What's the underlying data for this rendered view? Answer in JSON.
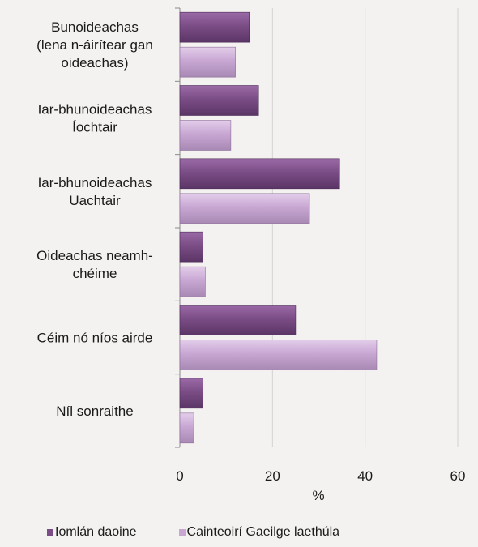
{
  "chart_data": {
    "type": "bar",
    "orientation": "horizontal",
    "categories": [
      [
        "Bunoideachas",
        "(lena n-áirítear gan",
        "oideachas)"
      ],
      [
        "Iar-bhunoideachas",
        "Íochtair"
      ],
      [
        "Iar-bhunoideachas",
        "Uachtair"
      ],
      [
        "Oideachas neamh-",
        "chéime"
      ],
      [
        "Céim nó níos airde"
      ],
      [
        "Níl sonraithe"
      ]
    ],
    "series": [
      {
        "name": "Iomlán daoine",
        "values": [
          15,
          17,
          34.5,
          5,
          25,
          5
        ],
        "color": "#7b4d86"
      },
      {
        "name": "Cainteoirí Gaeilge laethúla",
        "values": [
          12,
          11,
          28,
          5.5,
          42.5,
          3
        ],
        "color": "#c8a7d3"
      }
    ],
    "xlabel": "%",
    "ylabel": "",
    "xlim": [
      0,
      60
    ],
    "xticks": [
      0,
      20,
      40,
      60
    ],
    "grid": true,
    "legend": "bottom"
  }
}
